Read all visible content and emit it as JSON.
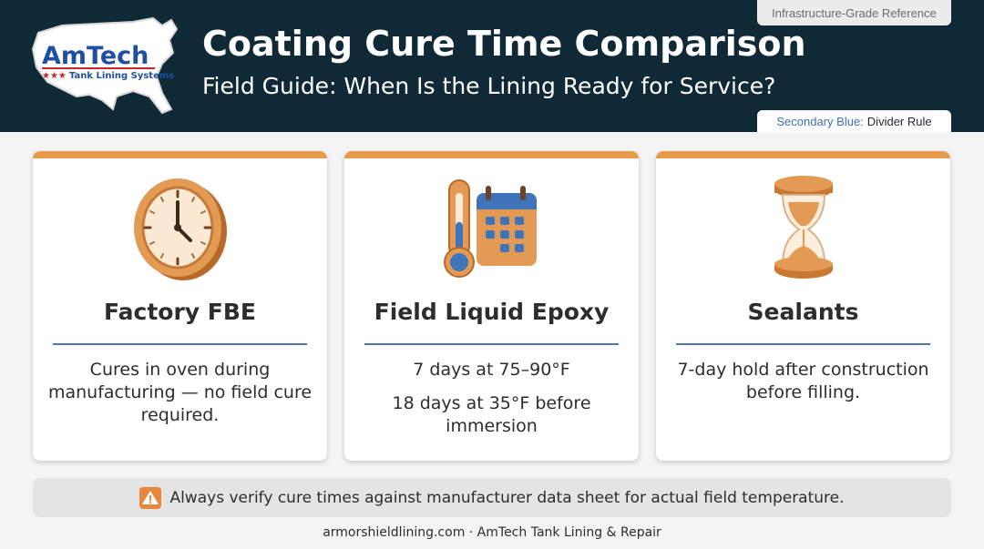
{
  "header": {
    "logo": {
      "brand": "AmTech",
      "tagline": "Tank Lining Systems",
      "stars": "★★★"
    },
    "title": "Coating Cure Time Comparison",
    "subtitle": "Field Guide: When Is the Lining Ready for Service?",
    "tag_top": "Infrastructure-Grade Reference",
    "tag_bottom": {
      "label": "Secondary Blue:",
      "value": "Divider Rule"
    }
  },
  "cards": [
    {
      "icon": "clock-icon",
      "title": "Factory FBE",
      "lines": [
        "Cures in oven during manufacturing — no field cure required."
      ]
    },
    {
      "icon": "thermometer-calendar-icon",
      "title": "Field Liquid Epoxy",
      "lines": [
        "7 days at 75–90°F",
        "18 days at 35°F before immersion"
      ]
    },
    {
      "icon": "hourglass-icon",
      "title": "Sealants",
      "lines": [
        "7-day hold after construction before filling."
      ]
    }
  ],
  "notice": {
    "icon": "warning-icon",
    "text": "Always verify cure times against manufacturer data sheet for actual field temperature."
  },
  "footer": {
    "text": "armorshieldlining.com · AmTech Tank Lining & Repair"
  },
  "colors": {
    "header_bg": "#0f2a36",
    "accent_orange": "#e89a4c",
    "divider_blue": "#4a78b5",
    "brand_blue": "#1f4fa0",
    "brand_red": "#c8262b"
  }
}
